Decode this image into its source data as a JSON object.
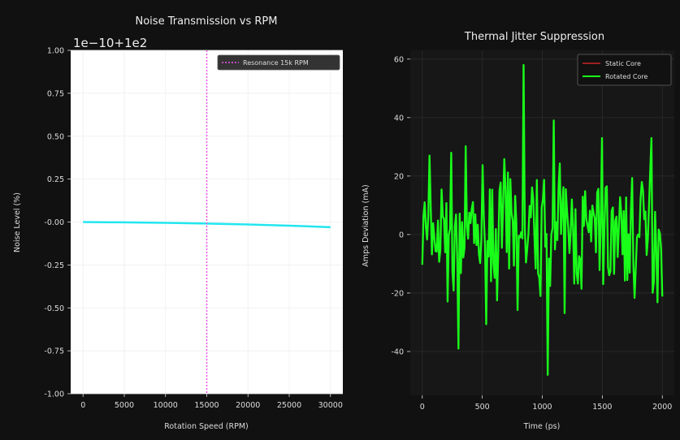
{
  "chart_data": [
    {
      "type": "line",
      "title": "Noise Transmission vs RPM",
      "xlabel": "Rotation Speed (RPM)",
      "ylabel": "Noise Level (%)",
      "offset_text": "1e−10+1e2",
      "xlim": [
        -1500,
        31500
      ],
      "ylim": [
        -1.0,
        1.0
      ],
      "xticks": [
        0,
        5000,
        10000,
        15000,
        20000,
        25000,
        30000
      ],
      "xtick_labels": [
        "0",
        "5000",
        "10000",
        "15000",
        "20000",
        "25000",
        "30000"
      ],
      "yticks": [
        1.0,
        0.75,
        0.5,
        0.25,
        0.0,
        -0.25,
        -0.5,
        -0.75,
        -1.0
      ],
      "ytick_labels": [
        "1.00",
        "0.75",
        "0.50",
        "0.25",
        "-0.00",
        "-0.25",
        "-0.50",
        "-0.75",
        "-1.00"
      ],
      "grid": true,
      "background": "#ffffff",
      "series": [
        {
          "color": "#22e6f0",
          "x": [
            0,
            5000,
            10000,
            15000,
            20000,
            25000,
            30000
          ],
          "y": [
            0.0,
            -0.002,
            -0.005,
            -0.009,
            -0.014,
            -0.021,
            -0.03
          ]
        }
      ],
      "vline": {
        "x": 15000,
        "color": "#ee55ee",
        "label": "Resonance 15k RPM"
      },
      "legend": {
        "placement": "top-right",
        "entries": [
          "Resonance 15k RPM"
        ]
      }
    },
    {
      "type": "line",
      "title": "Thermal Jitter Suppression",
      "xlabel": "Time (ps)",
      "ylabel": "Amps Deviation (mA)",
      "xlim": [
        -100,
        2100
      ],
      "ylim": [
        -55,
        63
      ],
      "xticks": [
        0,
        500,
        1000,
        1500,
        2000
      ],
      "xtick_labels": [
        "0",
        "500",
        "1000",
        "1500",
        "2000"
      ],
      "yticks": [
        60,
        40,
        20,
        0,
        -20,
        -40
      ],
      "ytick_labels": [
        "60",
        "40",
        "20",
        "0",
        "-20",
        "-40"
      ],
      "grid": true,
      "background": "#171717",
      "series": [
        {
          "name": "Static Core",
          "color": "#cc2222",
          "visible_in_plot": false
        },
        {
          "name": "Rotated Core",
          "color": "#1aff1a",
          "n_points": 200,
          "x_start": 0,
          "x_end": 2000,
          "seed": 7,
          "spikes": [
            [
              60,
              27
            ],
            [
              300,
              -39
            ],
            [
              840,
              58
            ],
            [
              1050,
              -48
            ],
            [
              1100,
              39
            ],
            [
              1500,
              33
            ],
            [
              1910,
              33
            ]
          ]
        }
      ],
      "legend": {
        "placement": "top-right",
        "entries": [
          "Static Core",
          "Rotated Core"
        ]
      }
    }
  ]
}
